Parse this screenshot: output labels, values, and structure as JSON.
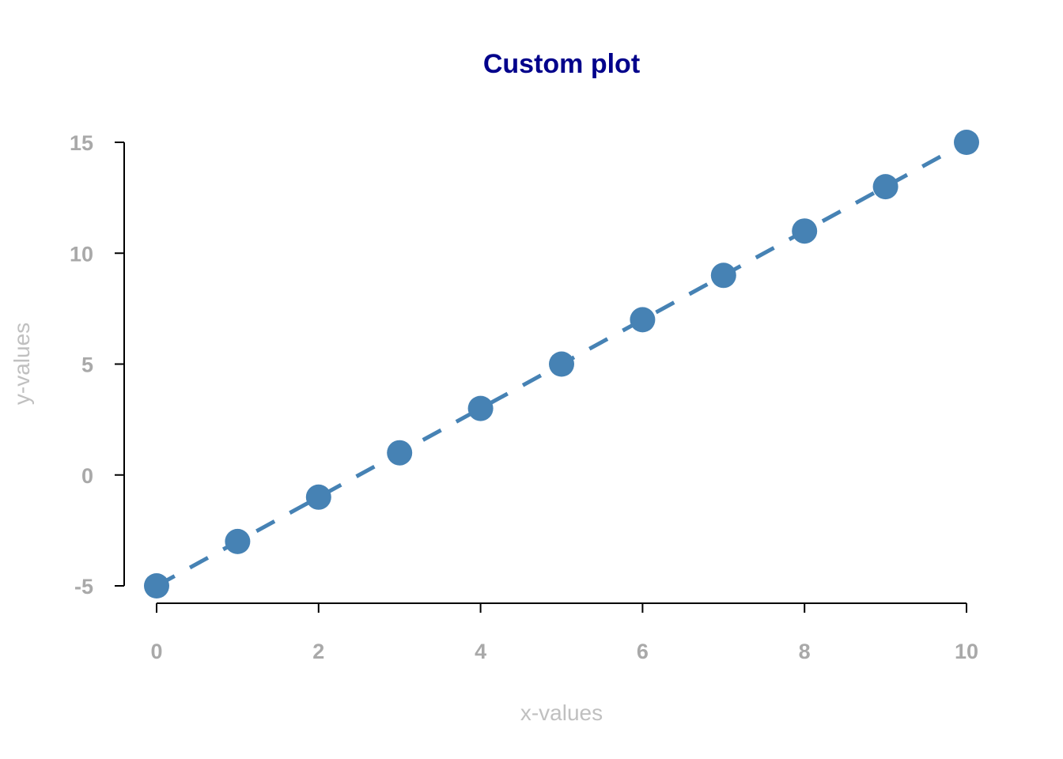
{
  "chart_data": {
    "type": "line",
    "title": "Custom plot",
    "xlabel": "x-values",
    "ylabel": "y-values",
    "x": [
      0,
      1,
      2,
      3,
      4,
      5,
      6,
      7,
      8,
      9,
      10
    ],
    "series": [
      {
        "values": [
          -5,
          -3,
          -1,
          1,
          3,
          5,
          7,
          9,
          11,
          13,
          15
        ]
      }
    ],
    "xlim": [
      0,
      10
    ],
    "ylim": [
      -5,
      15
    ],
    "x_ticks": [
      0,
      2,
      4,
      6,
      8,
      10
    ],
    "y_ticks": [
      -5,
      0,
      5,
      10,
      15
    ],
    "x_tick_labels": [
      "0",
      "2",
      "4",
      "6",
      "8",
      "10"
    ],
    "y_tick_labels": [
      "-5",
      "0",
      "5",
      "10",
      "15"
    ],
    "line_style": "dashed",
    "marker": "filled circle",
    "grid": false,
    "legend": "none"
  },
  "colors": {
    "title": "#00008B",
    "series": "#4682B4",
    "tick_labels": "#A9A9A9",
    "axis_titles": "#C0C0C0",
    "axis_lines": "#000000"
  }
}
